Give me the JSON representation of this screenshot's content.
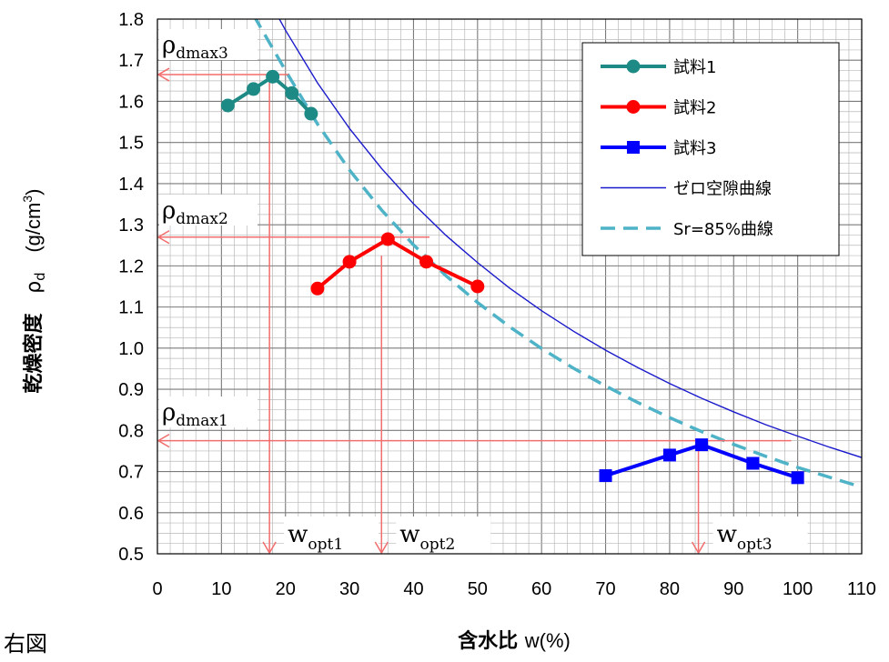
{
  "caption": "右図",
  "chart_data": {
    "type": "line",
    "xlabel": "含水比 w(%)",
    "ylabel": "乾燥密度 ρd (g/cm³)",
    "ylabel_parts": {
      "main": "乾燥密度",
      "rho": "ρ",
      "rho_sub": "d",
      "unit_open": "(g/cm",
      "unit_sup": "3",
      "unit_close": ")"
    },
    "xlim": [
      0,
      110
    ],
    "ylim": [
      0.5,
      1.8
    ],
    "xticks": [
      "0",
      "10",
      "20",
      "30",
      "40",
      "50",
      "60",
      "70",
      "80",
      "90",
      "100",
      "110"
    ],
    "yticks": [
      "0.5",
      "0.6",
      "0.7",
      "0.8",
      "0.9",
      "1.0",
      "1.1",
      "1.2",
      "1.3",
      "1.4",
      "1.5",
      "1.6",
      "1.7",
      "1.8"
    ],
    "grid": true,
    "legend_position": "top-right",
    "series": [
      {
        "name": "試料1",
        "color": "#1e8a86",
        "marker": "circle",
        "x": [
          11,
          15,
          18,
          21,
          24
        ],
        "y": [
          1.59,
          1.63,
          1.66,
          1.62,
          1.57
        ]
      },
      {
        "name": "試料2",
        "color": "#ff0000",
        "marker": "circle",
        "x": [
          25,
          30,
          36,
          42,
          50
        ],
        "y": [
          1.145,
          1.21,
          1.265,
          1.21,
          1.15
        ]
      },
      {
        "name": "試料3",
        "color": "#0000ff",
        "marker": "square",
        "x": [
          70,
          80,
          85,
          93,
          100
        ],
        "y": [
          0.69,
          0.74,
          0.765,
          0.72,
          0.685
        ]
      },
      {
        "name": "ゼロ空隙曲線",
        "color": "#1a1acc",
        "style": "solid-thin",
        "x": [
          18,
          20,
          25,
          30,
          35,
          40,
          45,
          50,
          55,
          60,
          65,
          70,
          75,
          80,
          85,
          90,
          95,
          100,
          105,
          110
        ],
        "y": [
          1.83,
          1.773,
          1.645,
          1.534,
          1.437,
          1.351,
          1.275,
          1.208,
          1.146,
          1.091,
          1.041,
          0.995,
          0.953,
          0.914,
          0.878,
          0.845,
          0.814,
          0.786,
          0.759,
          0.734
        ]
      },
      {
        "name": "Sr=85%曲線",
        "color": "#4fb3c8",
        "style": "dashed",
        "x": [
          15,
          20,
          25,
          30,
          35,
          40,
          45,
          50,
          55,
          60,
          65,
          70,
          75,
          80,
          85,
          90,
          95,
          100,
          105,
          110
        ],
        "y": [
          1.81,
          1.675,
          1.545,
          1.433,
          1.336,
          1.251,
          1.177,
          1.111,
          1.052,
          0.999,
          0.951,
          0.908,
          0.868,
          0.831,
          0.797,
          0.766,
          0.737,
          0.71,
          0.686,
          0.662
        ]
      }
    ],
    "annotations": {
      "color": "#f26d6d",
      "rho_lines": [
        {
          "label": "ρ",
          "sub": "dmax3",
          "y": 1.665,
          "x_end": 20.5
        },
        {
          "label": "ρ",
          "sub": "dmax2",
          "y": 1.27,
          "x_end": 42.5
        },
        {
          "label": "ρ",
          "sub": "dmax1",
          "y": 0.775,
          "x_end": 99
        }
      ],
      "w_lines": [
        {
          "label": "w",
          "sub": "opt1",
          "x": 17.5,
          "y_top": 1.665
        },
        {
          "label": "w",
          "sub": "opt2",
          "x": 35,
          "y_top": 1.225
        },
        {
          "label": "w",
          "sub": "opt3",
          "x": 84.5,
          "y_top": 0.755
        }
      ]
    }
  }
}
